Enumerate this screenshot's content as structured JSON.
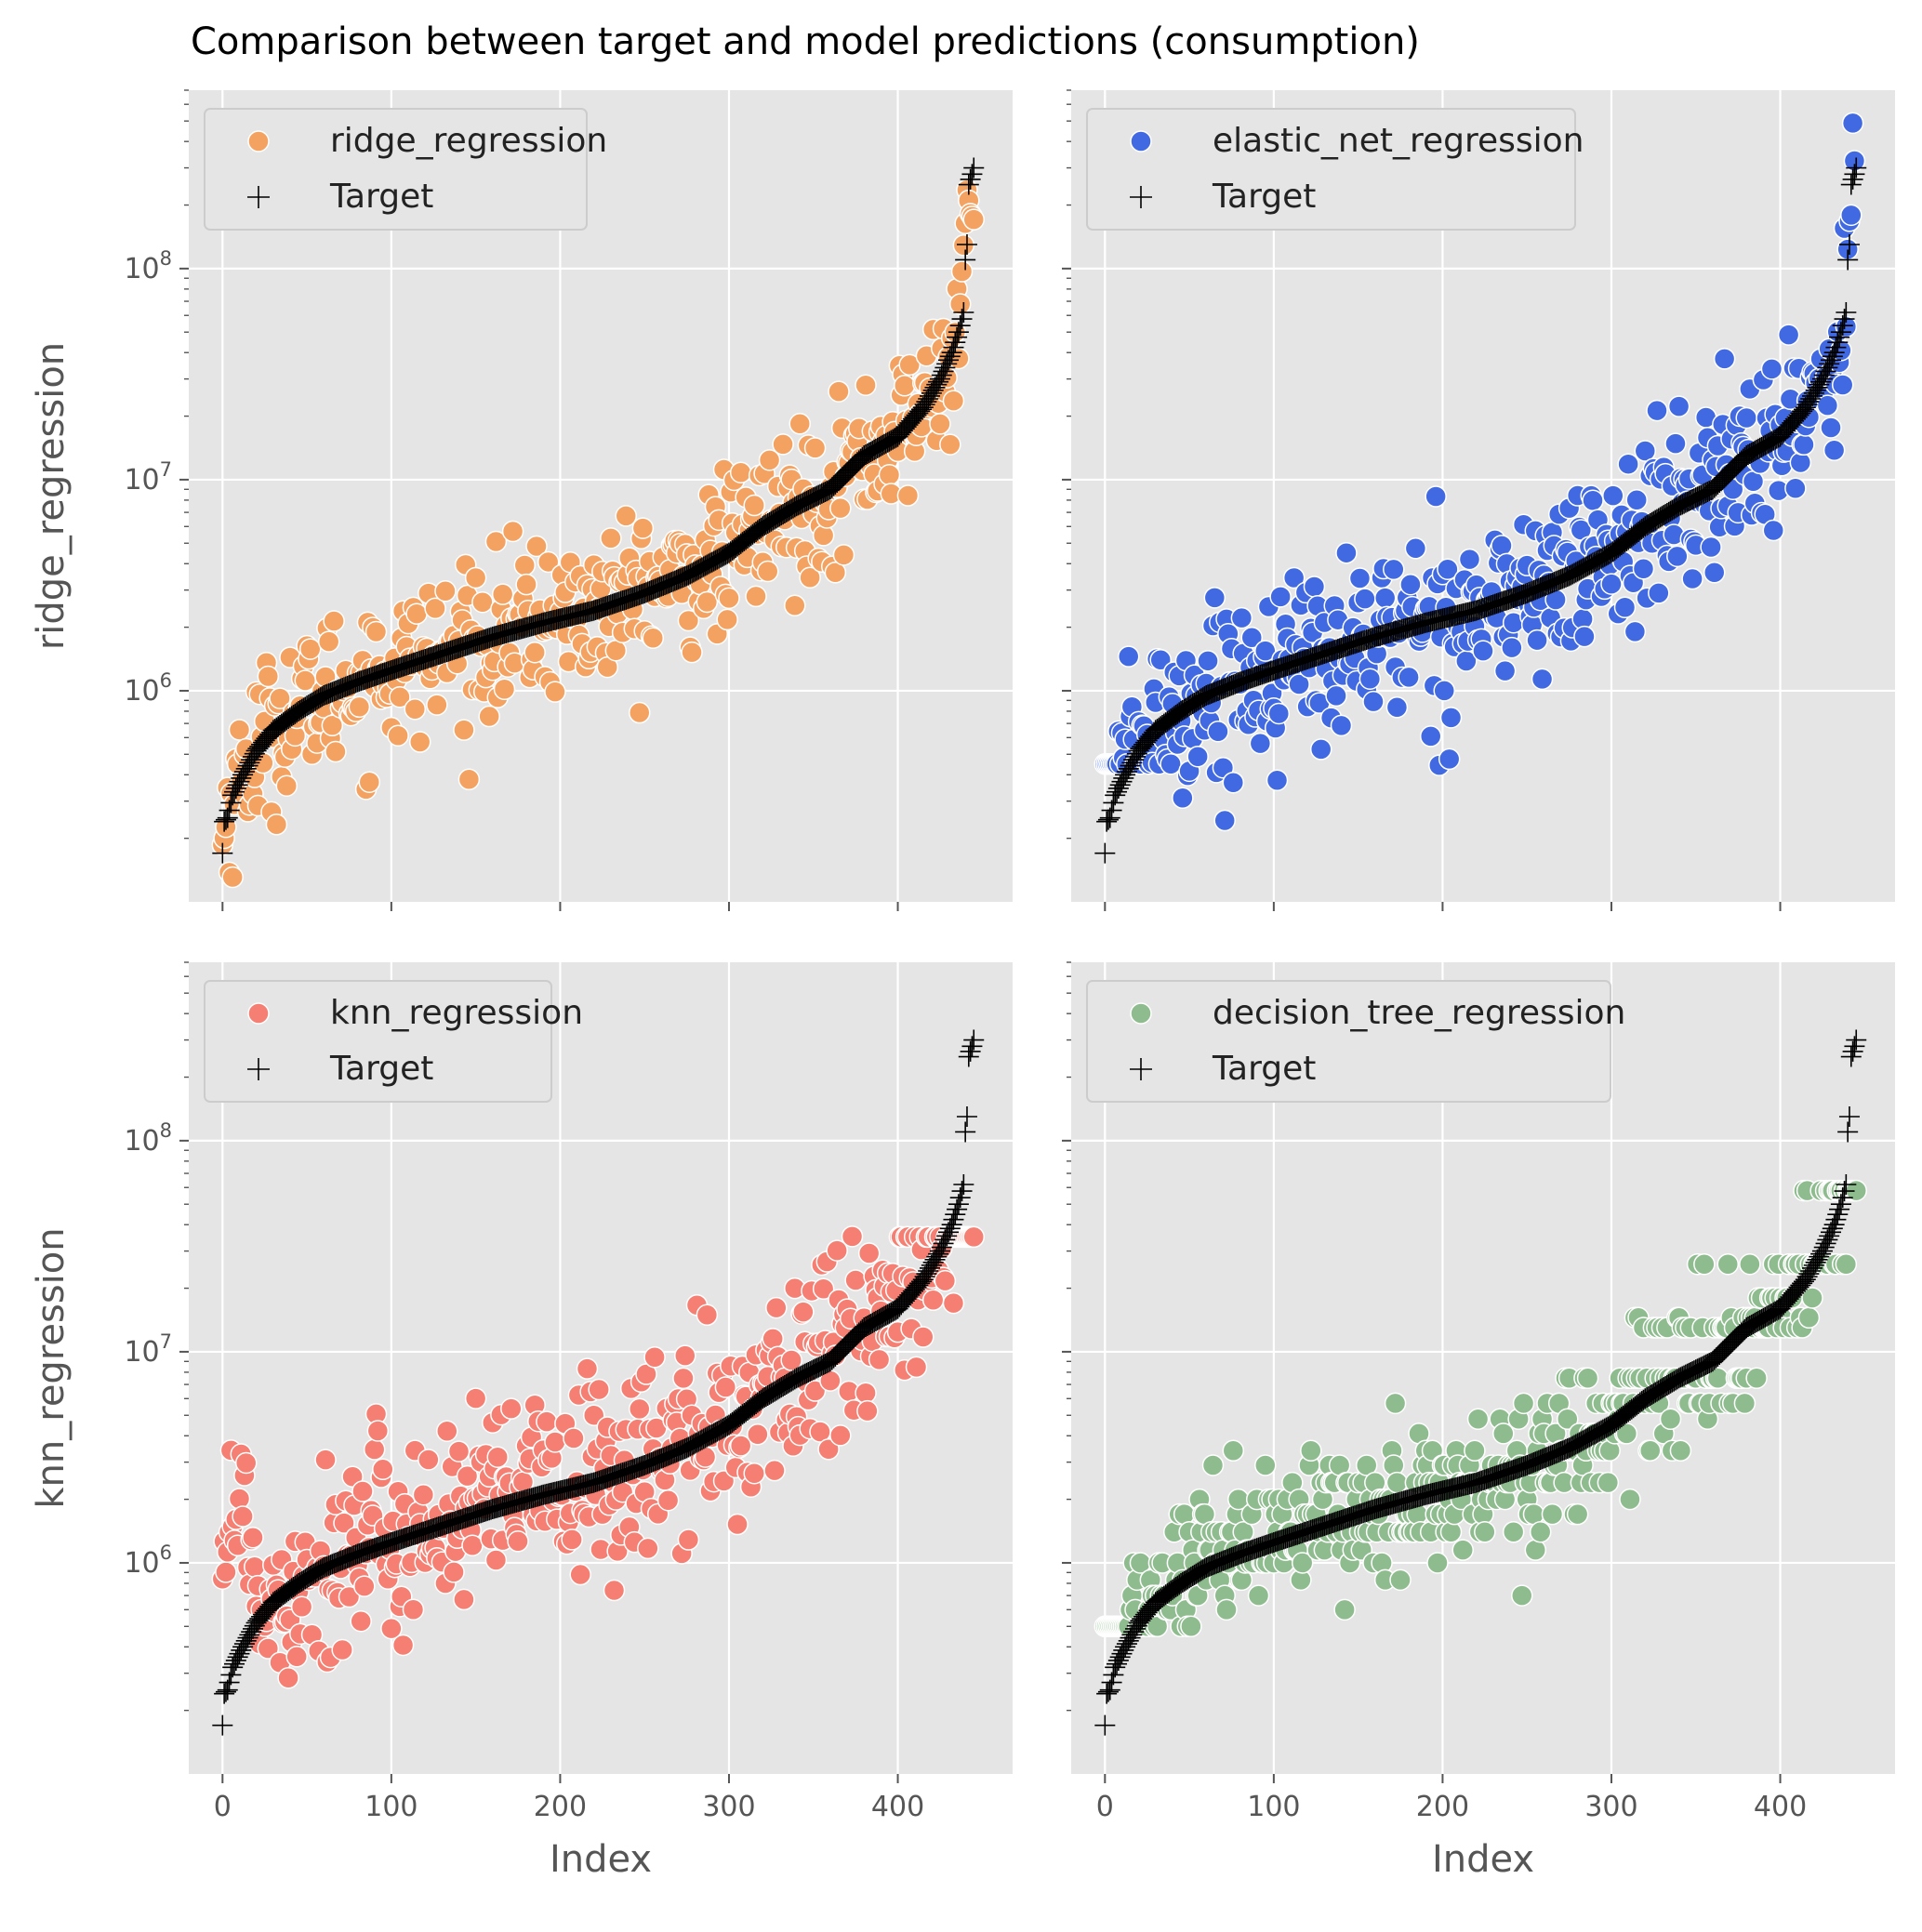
{
  "figure": {
    "title": "Comparison between target and model predictions (consumption)"
  },
  "colors": {
    "panel_background": "#e5e5e5",
    "grid": "#ffffff",
    "tick_text": "#555555",
    "target_marker": "#000000"
  },
  "chart_data": [
    {
      "type": "scatter",
      "ylabel": "ridge_regression",
      "xlabel": "",
      "yscale": "log",
      "xlim": [
        -20,
        468
      ],
      "ylim": [
        100000,
        700000000
      ],
      "x_ticks": [
        0,
        100,
        200,
        300,
        400
      ],
      "y_ticks": [
        1000000,
        10000000,
        100000000
      ],
      "grid": true,
      "legend_position": "top-left",
      "series": [
        {
          "name": "ridge_regression",
          "marker": "circle",
          "color": "#f4a261",
          "pattern": "ridge_regression",
          "n": 446
        },
        {
          "name": "Target",
          "marker": "plus",
          "color": "#000000",
          "pattern": "target",
          "n": 446
        }
      ]
    },
    {
      "type": "scatter",
      "ylabel": "",
      "xlabel": "",
      "yscale": "log",
      "xlim": [
        -20,
        468
      ],
      "ylim": [
        100000,
        700000000
      ],
      "x_ticks": [
        0,
        100,
        200,
        300,
        400
      ],
      "y_ticks": [
        1000000,
        10000000,
        100000000
      ],
      "grid": true,
      "legend_position": "top-left",
      "series": [
        {
          "name": "elastic_net_regression",
          "marker": "circle",
          "color": "#4169e1",
          "pattern": "elastic_net_regression",
          "n": 446
        },
        {
          "name": "Target",
          "marker": "plus",
          "color": "#000000",
          "pattern": "target",
          "n": 446
        }
      ]
    },
    {
      "type": "scatter",
      "ylabel": "knn_regression",
      "xlabel": "Index",
      "yscale": "log",
      "xlim": [
        -20,
        468
      ],
      "ylim": [
        100000,
        700000000
      ],
      "x_ticks": [
        0,
        100,
        200,
        300,
        400
      ],
      "y_ticks": [
        1000000,
        10000000,
        100000000
      ],
      "grid": true,
      "legend_position": "top-left",
      "series": [
        {
          "name": "knn_regression",
          "marker": "circle",
          "color": "#f47f72",
          "pattern": "knn_regression",
          "n": 446
        },
        {
          "name": "Target",
          "marker": "plus",
          "color": "#000000",
          "pattern": "target",
          "n": 446
        }
      ]
    },
    {
      "type": "scatter",
      "ylabel": "",
      "xlabel": "Index",
      "yscale": "log",
      "xlim": [
        -20,
        468
      ],
      "ylim": [
        100000,
        700000000
      ],
      "x_ticks": [
        0,
        100,
        200,
        300,
        400
      ],
      "y_ticks": [
        1000000,
        10000000,
        100000000
      ],
      "grid": true,
      "legend_position": "top-left",
      "series": [
        {
          "name": "decision_tree_regression",
          "marker": "circle",
          "color": "#8fbc8f",
          "pattern": "decision_tree_regression",
          "n": 446
        },
        {
          "name": "Target",
          "marker": "plus",
          "color": "#000000",
          "pattern": "target",
          "n": 446
        }
      ]
    }
  ]
}
